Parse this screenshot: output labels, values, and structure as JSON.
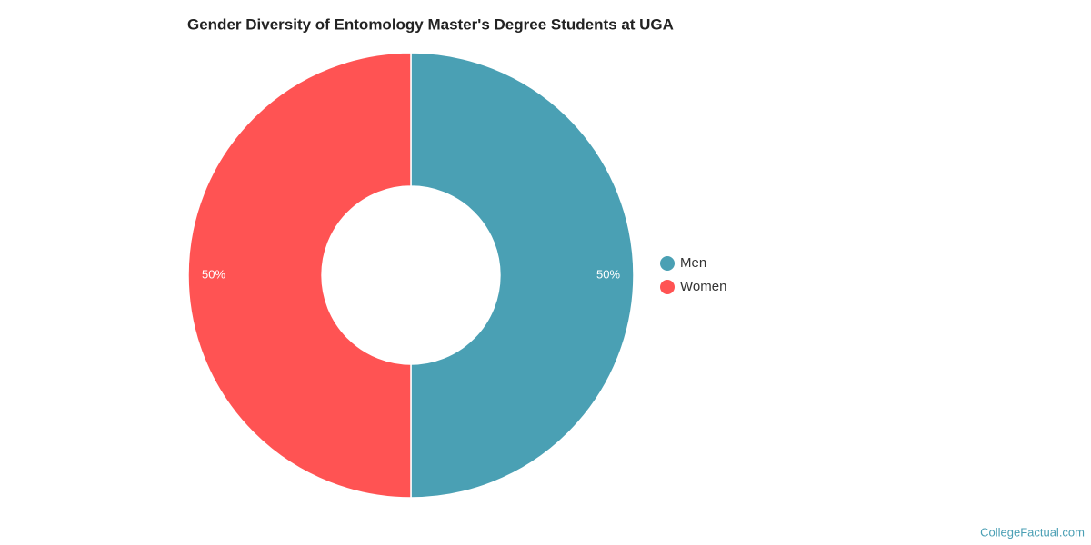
{
  "chart_data": {
    "type": "pie",
    "title": "Gender Diversity of Entomology Master's Degree Students at UGA",
    "categories": [
      "Men",
      "Women"
    ],
    "values": [
      50,
      50
    ],
    "value_labels": [
      "50%",
      "50%"
    ],
    "colors": [
      "#4aa0b4",
      "#ff5353"
    ],
    "donut": true,
    "legend": "right",
    "credit": "CollegeFactual.com"
  }
}
